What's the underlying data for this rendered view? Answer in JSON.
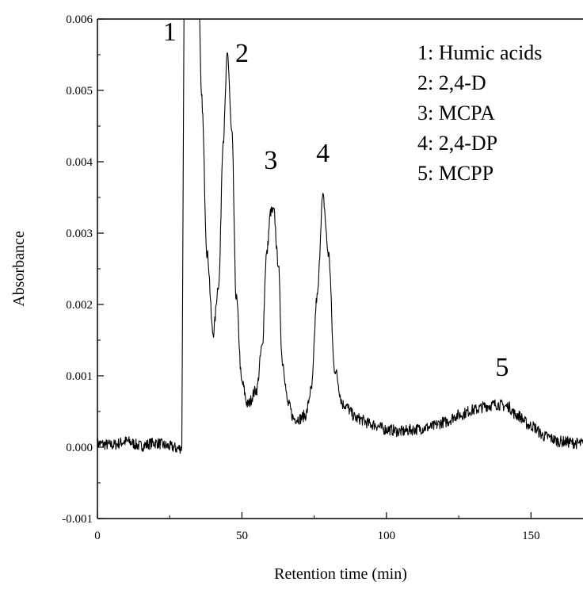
{
  "chart_data": {
    "type": "line",
    "title": "",
    "xlabel": "Retention time (min)",
    "ylabel": "Absorbance",
    "xlim": [
      0,
      168
    ],
    "ylim": [
      -0.001,
      0.006
    ],
    "x_ticks": [
      0,
      50,
      100,
      150
    ],
    "x_tick_labels": [
      "0",
      "50",
      "100",
      "150"
    ],
    "y_ticks": [
      -0.001,
      0.0,
      0.001,
      0.002,
      0.003,
      0.004,
      0.005,
      0.006
    ],
    "y_tick_labels": [
      "-0.001",
      "0.000",
      "0.001",
      "0.002",
      "0.003",
      "0.004",
      "0.005",
      "0.006"
    ],
    "grid": false,
    "legend_placement": "top-right",
    "series": [
      {
        "x": [
          0,
          5,
          10,
          15,
          20,
          25,
          28,
          29.2,
          30,
          32,
          34,
          35,
          36,
          38,
          40,
          42,
          43.5,
          45,
          46.5,
          48,
          50,
          52,
          55,
          57,
          58.5,
          60,
          61,
          62.5,
          64,
          66,
          68,
          70,
          72,
          74,
          76,
          78,
          80,
          82,
          85,
          90,
          95,
          100,
          105,
          110,
          115,
          120,
          125,
          130,
          135,
          138,
          142,
          145,
          150,
          155,
          160,
          168
        ],
        "y": [
          5e-05,
          3e-05,
          8e-05,
          2e-05,
          6e-05,
          1e-05,
          -2e-05,
          0.0,
          0.0065,
          0.0065,
          0.0065,
          0.0065,
          0.0049,
          0.0027,
          0.0016,
          0.0023,
          0.0043,
          0.0055,
          0.0044,
          0.0021,
          0.0009,
          0.0006,
          0.0008,
          0.0014,
          0.0027,
          0.0033,
          0.0033,
          0.0026,
          0.0012,
          0.0006,
          0.0004,
          0.0004,
          0.00045,
          0.0008,
          0.0021,
          0.0035,
          0.0027,
          0.0011,
          0.0006,
          0.0004,
          0.00032,
          0.00025,
          0.00022,
          0.00025,
          0.00028,
          0.00035,
          0.00045,
          0.00052,
          0.00058,
          0.0006,
          0.00057,
          0.00045,
          0.0003,
          0.00015,
          8e-05,
          5e-05
        ]
      }
    ],
    "annotations": [
      {
        "text": "1",
        "x": 25,
        "y": 0.0057
      },
      {
        "text": "2",
        "x": 50,
        "y": 0.0054
      },
      {
        "text": "3",
        "x": 60,
        "y": 0.0039
      },
      {
        "text": "4",
        "x": 78,
        "y": 0.004
      },
      {
        "text": "5",
        "x": 140,
        "y": 0.001
      }
    ],
    "legend": [
      "1: Humic acids",
      "2: 2,4-D",
      "3: MCPA",
      "4: 2,4-DP",
      "5: MCPP"
    ]
  }
}
